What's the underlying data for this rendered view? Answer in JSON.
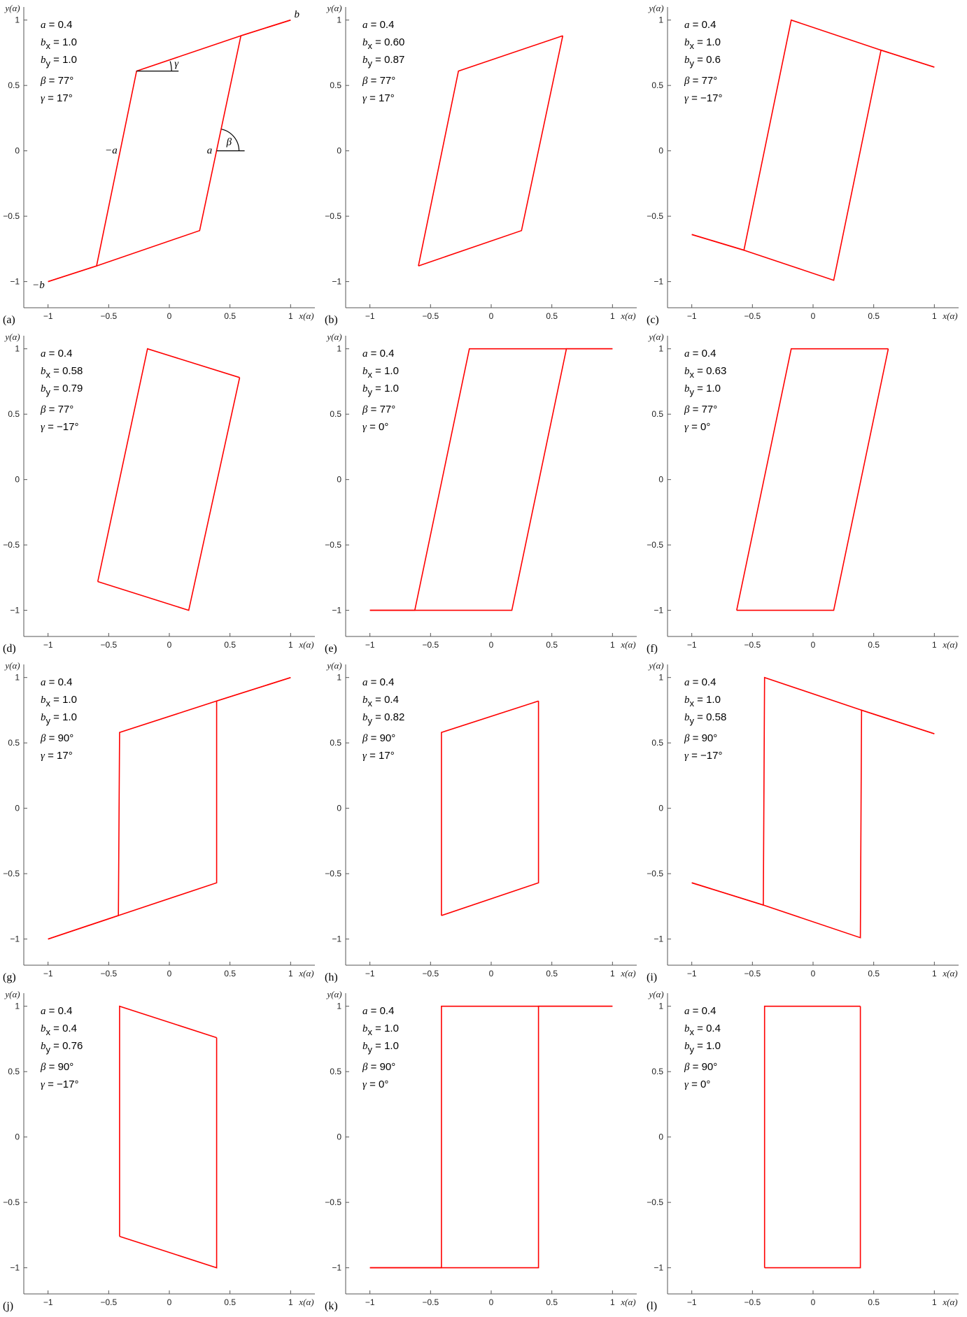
{
  "colors": {
    "loop": "#ff0000",
    "axis": "#555555",
    "text": "#000000"
  },
  "chart_data": [
    {
      "panel": "(a)",
      "type": "line",
      "xlabel": "x(α)",
      "ylabel": "y(α)",
      "xlim": [
        -1.2,
        1.2
      ],
      "ylim": [
        -1.2,
        1.1
      ],
      "xticks": [
        -1,
        -0.5,
        0,
        0.5,
        1
      ],
      "xtick_labels": [
        "−1",
        "−0.5",
        "0",
        "0.5",
        "1"
      ],
      "yticks": [
        -1,
        -0.5,
        0,
        0.5,
        1
      ],
      "ytick_labels": [
        "−1",
        "−0.5",
        "0",
        "0.5",
        "1"
      ],
      "params": {
        "a": "0.4",
        "bx": "1.0",
        "by": "1.0",
        "beta": "77°",
        "gamma": "17°"
      },
      "x": [
        -1,
        -0.6,
        0.25,
        0.59,
        1
      ],
      "y": [
        -1,
        -0.88,
        -0.61,
        0.88,
        1
      ],
      "x2": [
        -1,
        -0.6,
        -0.27,
        0.59,
        1
      ],
      "y2": [
        -1,
        -0.88,
        0.61,
        0.88,
        1
      ],
      "annotations": {
        "b": "b",
        "minus_b": "−b",
        "a": "a",
        "minus_a": "−a",
        "beta": "β",
        "gamma": "γ"
      }
    },
    {
      "panel": "(b)",
      "type": "line",
      "xlabel": "x(α)",
      "ylabel": "y(α)",
      "xlim": [
        -1.2,
        1.2
      ],
      "ylim": [
        -1.2,
        1.1
      ],
      "xticks": [
        -1,
        -0.5,
        0,
        0.5,
        1
      ],
      "xtick_labels": [
        "−1",
        "−0.5",
        "0",
        "0.5",
        "1"
      ],
      "yticks": [
        -1,
        -0.5,
        0,
        0.5,
        1
      ],
      "ytick_labels": [
        "−1",
        "−0.5",
        "0",
        "0.5",
        "1"
      ],
      "params": {
        "a": "0.4",
        "bx": "0.60",
        "by": "0.87",
        "beta": "77°",
        "gamma": "17°"
      },
      "x": [
        -0.6,
        0.25,
        0.59
      ],
      "y": [
        -0.88,
        -0.61,
        0.88
      ],
      "x2": [
        -0.6,
        -0.27,
        0.59
      ],
      "y2": [
        -0.88,
        0.61,
        0.88
      ]
    },
    {
      "panel": "(c)",
      "type": "line",
      "xlabel": "x(α)",
      "ylabel": "y(α)",
      "xlim": [
        -1.2,
        1.2
      ],
      "ylim": [
        -1.2,
        1.1
      ],
      "xticks": [
        -1,
        -0.5,
        0,
        0.5,
        1
      ],
      "xtick_labels": [
        "−1",
        "−0.5",
        "0",
        "0.5",
        "1"
      ],
      "yticks": [
        -1,
        -0.5,
        0,
        0.5,
        1
      ],
      "ytick_labels": [
        "−1",
        "−0.5",
        "0",
        "0.5",
        "1"
      ],
      "params": {
        "a": "0.4",
        "bx": "1.0",
        "by": "0.6",
        "beta": "77°",
        "gamma": "−17°"
      },
      "x": [
        -1,
        -0.57,
        0.17,
        0.56,
        1
      ],
      "y": [
        -0.64,
        -0.76,
        -0.99,
        0.77,
        0.64
      ],
      "x2": [
        -1,
        -0.57,
        -0.18,
        0.56,
        1
      ],
      "y2": [
        -0.64,
        -0.76,
        1.0,
        0.77,
        0.64
      ]
    },
    {
      "panel": "(d)",
      "type": "line",
      "xlabel": "x(α)",
      "ylabel": "y(α)",
      "xlim": [
        -1.2,
        1.2
      ],
      "ylim": [
        -1.2,
        1.1
      ],
      "xticks": [
        -1,
        -0.5,
        0,
        0.5,
        1
      ],
      "xtick_labels": [
        "−1",
        "−0.5",
        "0",
        "0.5",
        "1"
      ],
      "yticks": [
        -1,
        -0.5,
        0,
        0.5,
        1
      ],
      "ytick_labels": [
        "−1",
        "−0.5",
        "0",
        "0.5",
        "1"
      ],
      "params": {
        "a": "0.4",
        "bx": "0.58",
        "by": "0.79",
        "beta": "77°",
        "gamma": "−17°"
      },
      "x": [
        -0.59,
        0.16,
        0.58
      ],
      "y": [
        -0.78,
        -1.0,
        0.78
      ],
      "x2": [
        -0.59,
        -0.18,
        0.58
      ],
      "y2": [
        -0.78,
        1.0,
        0.78
      ]
    },
    {
      "panel": "(e)",
      "type": "line",
      "xlabel": "x(α)",
      "ylabel": "y(α)",
      "xlim": [
        -1.2,
        1.2
      ],
      "ylim": [
        -1.2,
        1.1
      ],
      "xticks": [
        -1,
        -0.5,
        0,
        0.5,
        1
      ],
      "xtick_labels": [
        "−1",
        "−0.5",
        "0",
        "0.5",
        "1"
      ],
      "yticks": [
        -1,
        -0.5,
        0,
        0.5,
        1
      ],
      "ytick_labels": [
        "−1",
        "−0.5",
        "0",
        "0.5",
        "1"
      ],
      "params": {
        "a": "0.4",
        "bx": "1.0",
        "by": "1.0",
        "beta": "77°",
        "gamma": "0°"
      },
      "x": [
        -1,
        -0.63,
        0.17,
        0.62,
        1
      ],
      "y": [
        -1,
        -1,
        -1,
        1,
        1
      ],
      "x2": [
        -1,
        -0.63,
        -0.18,
        0.62,
        1
      ],
      "y2": [
        -1,
        -1,
        1,
        1,
        1
      ]
    },
    {
      "panel": "(f)",
      "type": "line",
      "xlabel": "x(α)",
      "ylabel": "y(α)",
      "xlim": [
        -1.2,
        1.2
      ],
      "ylim": [
        -1.2,
        1.1
      ],
      "xticks": [
        -1,
        -0.5,
        0,
        0.5,
        1
      ],
      "xtick_labels": [
        "−1",
        "−0.5",
        "0",
        "0.5",
        "1"
      ],
      "yticks": [
        -1,
        -0.5,
        0,
        0.5,
        1
      ],
      "ytick_labels": [
        "−1",
        "−0.5",
        "0",
        "0.5",
        "1"
      ],
      "params": {
        "a": "0.4",
        "bx": "0.63",
        "by": "1.0",
        "beta": "77°",
        "gamma": "0°"
      },
      "x": [
        -0.63,
        0.17,
        0.62
      ],
      "y": [
        -1,
        -1,
        1
      ],
      "x2": [
        -0.63,
        -0.18,
        0.62
      ],
      "y2": [
        -1,
        1,
        1
      ]
    },
    {
      "panel": "(g)",
      "type": "line",
      "xlabel": "x(α)",
      "ylabel": "y(α)",
      "xlim": [
        -1.2,
        1.2
      ],
      "ylim": [
        -1.2,
        1.1
      ],
      "xticks": [
        -1,
        -0.5,
        0,
        0.5,
        1
      ],
      "xtick_labels": [
        "−1",
        "−0.5",
        "0",
        "0.5",
        "1"
      ],
      "yticks": [
        -1,
        -0.5,
        0,
        0.5,
        1
      ],
      "ytick_labels": [
        "−1",
        "−0.5",
        "0",
        "0.5",
        "1"
      ],
      "params": {
        "a": "0.4",
        "bx": "1.0",
        "by": "1.0",
        "beta": "90°",
        "gamma": "17°"
      },
      "x": [
        -1,
        -0.42,
        0.39,
        0.39,
        1
      ],
      "y": [
        -1,
        -0.82,
        -0.57,
        0.82,
        1
      ],
      "x2": [
        -1,
        -0.42,
        -0.41,
        0.39,
        1
      ],
      "y2": [
        -1,
        -0.82,
        0.58,
        0.82,
        1
      ]
    },
    {
      "panel": "(h)",
      "type": "line",
      "xlabel": "x(α)",
      "ylabel": "y(α)",
      "xlim": [
        -1.2,
        1.2
      ],
      "ylim": [
        -1.2,
        1.1
      ],
      "xticks": [
        -1,
        -0.5,
        0,
        0.5,
        1
      ],
      "xtick_labels": [
        "−1",
        "−0.5",
        "0",
        "0.5",
        "1"
      ],
      "yticks": [
        -1,
        -0.5,
        0,
        0.5,
        1
      ],
      "ytick_labels": [
        "−1",
        "−0.5",
        "0",
        "0.5",
        "1"
      ],
      "params": {
        "a": "0.4",
        "bx": "0.4",
        "by": "0.82",
        "beta": "90°",
        "gamma": "17°"
      },
      "x": [
        -0.41,
        0.39,
        0.39
      ],
      "y": [
        -0.82,
        -0.57,
        0.82
      ],
      "x2": [
        -0.41,
        -0.41,
        0.39
      ],
      "y2": [
        -0.82,
        0.58,
        0.82
      ]
    },
    {
      "panel": "(i)",
      "type": "line",
      "xlabel": "x(α)",
      "ylabel": "y(α)",
      "xlim": [
        -1.2,
        1.2
      ],
      "ylim": [
        -1.2,
        1.1
      ],
      "xticks": [
        -1,
        -0.5,
        0,
        0.5,
        1
      ],
      "xtick_labels": [
        "−1",
        "−0.5",
        "0",
        "0.5",
        "1"
      ],
      "yticks": [
        -1,
        -0.5,
        0,
        0.5,
        1
      ],
      "ytick_labels": [
        "−1",
        "−0.5",
        "0",
        "0.5",
        "1"
      ],
      "params": {
        "a": "0.4",
        "bx": "1.0",
        "by": "0.58",
        "beta": "90°",
        "gamma": "−17°"
      },
      "x": [
        -1,
        -0.41,
        0.39,
        0.4,
        1
      ],
      "y": [
        -0.57,
        -0.74,
        -0.99,
        0.75,
        0.57
      ],
      "x2": [
        -1,
        -0.41,
        -0.4,
        0.4,
        1
      ],
      "y2": [
        -0.57,
        -0.74,
        1.0,
        0.75,
        0.57
      ]
    },
    {
      "panel": "(j)",
      "type": "line",
      "xlabel": "x(α)",
      "ylabel": "y(α)",
      "xlim": [
        -1.2,
        1.2
      ],
      "ylim": [
        -1.2,
        1.1
      ],
      "xticks": [
        -1,
        -0.5,
        0,
        0.5,
        1
      ],
      "xtick_labels": [
        "−1",
        "−0.5",
        "0",
        "0.5",
        "1"
      ],
      "yticks": [
        -1,
        -0.5,
        0,
        0.5,
        1
      ],
      "ytick_labels": [
        "−1",
        "−0.5",
        "0",
        "0.5",
        "1"
      ],
      "params": {
        "a": "0.4",
        "bx": "0.4",
        "by": "0.76",
        "beta": "90°",
        "gamma": "−17°"
      },
      "x": [
        -0.41,
        0.39,
        0.39
      ],
      "y": [
        -0.76,
        -1.0,
        0.76
      ],
      "x2": [
        -0.41,
        -0.41,
        0.39
      ],
      "y2": [
        -0.76,
        1.0,
        0.76
      ]
    },
    {
      "panel": "(k)",
      "type": "line",
      "xlabel": "x(α)",
      "ylabel": "y(α)",
      "xlim": [
        -1.2,
        1.2
      ],
      "ylim": [
        -1.2,
        1.1
      ],
      "xticks": [
        -1,
        -0.5,
        0,
        0.5,
        1
      ],
      "xtick_labels": [
        "−1",
        "−0.5",
        "0",
        "0.5",
        "1"
      ],
      "yticks": [
        -1,
        -0.5,
        0,
        0.5,
        1
      ],
      "ytick_labels": [
        "−1",
        "−0.5",
        "0",
        "0.5",
        "1"
      ],
      "params": {
        "a": "0.4",
        "bx": "1.0",
        "by": "1.0",
        "beta": "90°",
        "gamma": "0°"
      },
      "x": [
        -1,
        -0.41,
        0.39,
        0.39,
        1
      ],
      "y": [
        -1,
        -1,
        -1,
        1,
        1
      ],
      "x2": [
        -1,
        -0.41,
        -0.41,
        0.39,
        1
      ],
      "y2": [
        -1,
        -1,
        1,
        1,
        1
      ]
    },
    {
      "panel": "(l)",
      "type": "line",
      "xlabel": "x(α)",
      "ylabel": "y(α)",
      "xlim": [
        -1.2,
        1.2
      ],
      "ylim": [
        -1.2,
        1.1
      ],
      "xticks": [
        -1,
        -0.5,
        0,
        0.5,
        1
      ],
      "xtick_labels": [
        "−1",
        "−0.5",
        "0",
        "0.5",
        "1"
      ],
      "yticks": [
        -1,
        -0.5,
        0,
        0.5,
        1
      ],
      "ytick_labels": [
        "−1",
        "−0.5",
        "0",
        "0.5",
        "1"
      ],
      "params": {
        "a": "0.4",
        "bx": "0.4",
        "by": "1.0",
        "beta": "90°",
        "gamma": "0°"
      },
      "x": [
        -0.4,
        0.39,
        0.39
      ],
      "y": [
        -1,
        -1,
        1
      ],
      "x2": [
        -0.4,
        -0.4,
        0.39
      ],
      "y2": [
        -1,
        1,
        1
      ]
    }
  ]
}
